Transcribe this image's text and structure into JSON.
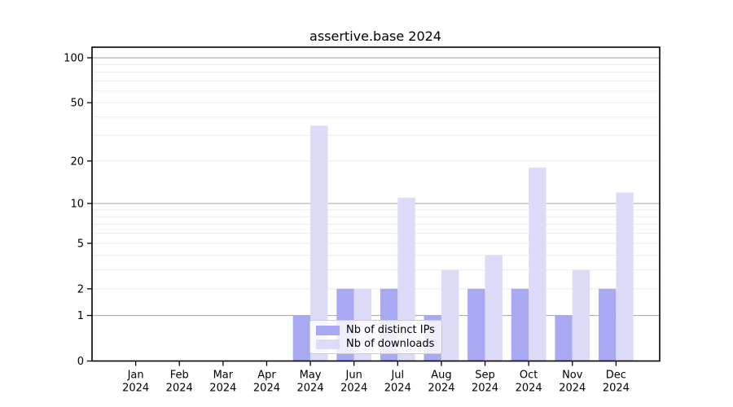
{
  "chart_data": {
    "type": "bar",
    "title": "assertive.base 2024",
    "categories": [
      "Jan",
      "Feb",
      "Mar",
      "Apr",
      "May",
      "Jun",
      "Jul",
      "Aug",
      "Sep",
      "Oct",
      "Nov",
      "Dec"
    ],
    "x_tick_year": "2024",
    "series": [
      {
        "name": "Nb of distinct IPs",
        "color": "#a9a9f3",
        "values": [
          0,
          0,
          0,
          0,
          1,
          2,
          2,
          1,
          2,
          2,
          1,
          2
        ]
      },
      {
        "name": "Nb of downloads",
        "color": "#dcdcf9",
        "values": [
          0,
          0,
          0,
          0,
          35,
          2,
          11,
          3,
          4,
          18,
          3,
          12
        ]
      }
    ],
    "yscale": "log1p",
    "ylim": [
      0,
      100
    ],
    "ytick_labels": [
      "0",
      "1",
      "2",
      "5",
      "10",
      "20",
      "50",
      "100"
    ],
    "yticks": [
      0,
      1,
      2,
      5,
      10,
      20,
      50,
      100
    ],
    "major_gridlines": [
      1,
      10,
      100
    ],
    "minor_gridlines": [
      2,
      3,
      4,
      5,
      6,
      7,
      8,
      9,
      20,
      30,
      40,
      50,
      60,
      70,
      80,
      90
    ],
    "grid": true,
    "legend_position": "lower-center",
    "colors": {
      "spine": "#000000",
      "major_grid": "#b0b0b0",
      "minor_grid": "#ebebeb",
      "text": "#000000"
    }
  }
}
